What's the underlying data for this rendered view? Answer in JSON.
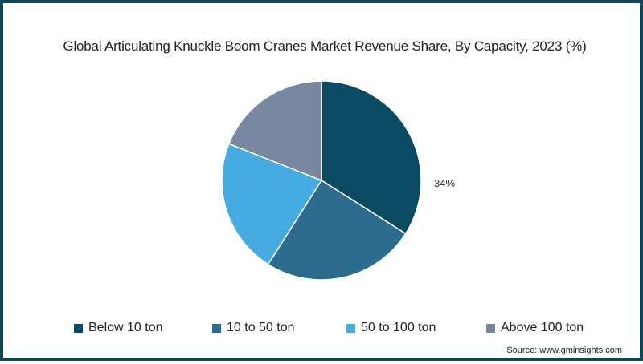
{
  "chart_data": {
    "type": "pie",
    "title": "Global Articulating Knuckle Boom Cranes Market Revenue Share, By Capacity, 2023 (%)",
    "categories": [
      "Below 10 ton",
      "10 to 50 ton",
      "50 to 100 ton",
      "Above 100 ton"
    ],
    "values": [
      34,
      25,
      22,
      19
    ],
    "colors": [
      "#0b4a63",
      "#2d6c8e",
      "#45abe0",
      "#7888a0"
    ],
    "data_labels": [
      {
        "category": "Below 10 ton",
        "text": "34%"
      }
    ],
    "legend_position": "bottom",
    "start_angle_deg": 0,
    "direction": "clockwise"
  },
  "title": "Global Articulating Knuckle Boom Cranes Market Revenue Share, By Capacity, 2023 (%)",
  "slice_label": "34%",
  "legend": [
    {
      "label": "Below 10 ton",
      "color": "#0b4a63"
    },
    {
      "label": "10 to 50 ton",
      "color": "#2d6c8e"
    },
    {
      "label": "50 to 100 ton",
      "color": "#45abe0"
    },
    {
      "label": "Above 100 ton",
      "color": "#7888a0"
    }
  ],
  "source": "Source: www.gminsights.com",
  "border_color": "#0f4658"
}
